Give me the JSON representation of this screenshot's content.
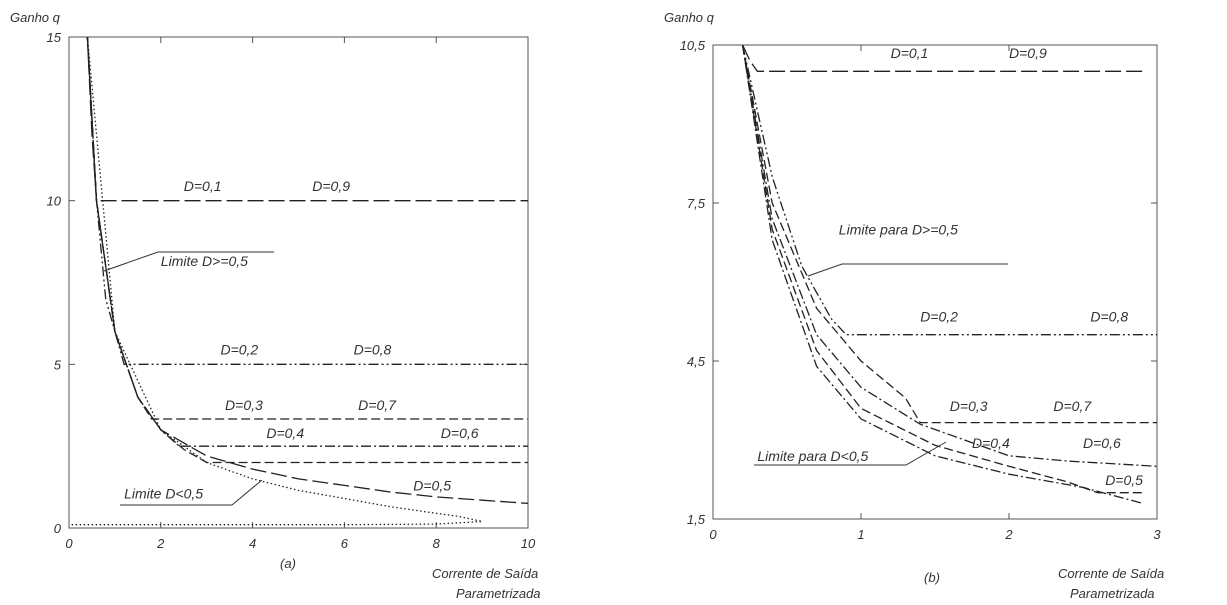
{
  "chart_data": [
    {
      "type": "line",
      "panel_label": "(a)",
      "ylabel": "Ganho q",
      "xlabel_line1": "Corrente de Saída",
      "xlabel_line2": "Parametrizada",
      "xlim": [
        0,
        10
      ],
      "ylim": [
        0,
        15
      ],
      "xticks": [
        "0",
        "2",
        "4",
        "6",
        "8",
        "10"
      ],
      "yticks": [
        "0",
        "5",
        "10",
        "15"
      ],
      "series": [
        {
          "name": "D=0,1 / D=0,9",
          "style": "long-dash",
          "x": [
            0.4,
            0.5,
            0.6,
            1,
            3,
            6,
            10
          ],
          "y": [
            15,
            12,
            10,
            10,
            10,
            10,
            10
          ]
        },
        {
          "name": "D=0,2 / D=0,8",
          "style": "dash-dot-dot",
          "x": [
            0.4,
            0.6,
            0.8,
            1.2,
            3,
            6,
            10
          ],
          "y": [
            15,
            10,
            7,
            5,
            5,
            5,
            5
          ]
        },
        {
          "name": "D=0,3 / D=0,7",
          "style": "dash",
          "x": [
            0.4,
            0.6,
            1,
            1.5,
            1.8,
            3,
            6,
            10
          ],
          "y": [
            15,
            10,
            6,
            4,
            3.33,
            3.33,
            3.33,
            3.33
          ]
        },
        {
          "name": "D=0,4 / D=0,6",
          "style": "dash-dot",
          "x": [
            0.4,
            0.6,
            1,
            1.5,
            2,
            2.4,
            3,
            6,
            10
          ],
          "y": [
            15,
            10,
            6,
            4,
            3,
            2.5,
            2.5,
            2.5,
            2.5
          ]
        },
        {
          "name": "D=0,5",
          "style": "dash",
          "x": [
            0.4,
            0.6,
            1,
            1.5,
            2,
            2.5,
            3,
            6,
            10
          ],
          "y": [
            15,
            10,
            6,
            4,
            3,
            2.4,
            2,
            2,
            2
          ]
        },
        {
          "name": "Limite D<0,5",
          "style": "long-dash",
          "x": [
            0.4,
            0.6,
            1,
            1.5,
            2,
            3,
            4,
            5,
            6,
            7,
            8,
            9,
            10
          ],
          "y": [
            15,
            10,
            6,
            4,
            3,
            2.2,
            1.8,
            1.5,
            1.3,
            1.1,
            0.95,
            0.85,
            0.75
          ]
        },
        {
          "name": "Limite D<0,5",
          "style": "dot",
          "x": [
            0.4,
            1,
            2,
            3,
            4,
            5,
            6,
            7,
            8,
            8.5,
            9,
            8,
            6,
            4,
            2,
            0
          ],
          "y": [
            15,
            6,
            3,
            2,
            1.5,
            1.15,
            0.9,
            0.65,
            0.45,
            0.35,
            0.2,
            0.12,
            0.1,
            0.1,
            0.1,
            0.1
          ]
        }
      ],
      "annotations": [
        {
          "text": "D=0,1",
          "x": 2.5,
          "y": 10.3
        },
        {
          "text": "D=0,9",
          "x": 5.3,
          "y": 10.3
        },
        {
          "text": "Limite D>=0,5",
          "x": 2.0,
          "y": 8.0
        },
        {
          "text": "D=0,2",
          "x": 3.3,
          "y": 5.3
        },
        {
          "text": "D=0,8",
          "x": 6.2,
          "y": 5.3
        },
        {
          "text": "D=0,3",
          "x": 3.4,
          "y": 3.6
        },
        {
          "text": "D=0,7",
          "x": 6.3,
          "y": 3.6
        },
        {
          "text": "D=0,4",
          "x": 4.3,
          "y": 2.75
        },
        {
          "text": "D=0,6",
          "x": 8.1,
          "y": 2.75
        },
        {
          "text": "D=0,5",
          "x": 7.5,
          "y": 1.15
        },
        {
          "text": "Limite D<0,5",
          "x": 1.2,
          "y": 0.9
        }
      ]
    },
    {
      "type": "line",
      "panel_label": "(b)",
      "ylabel": "Ganho q",
      "xlabel_line1": "Corrente de Saída",
      "xlabel_line2": "Parametrizada",
      "xlim": [
        0,
        3
      ],
      "ylim": [
        1.5,
        10.5
      ],
      "xticks": [
        "0",
        "1",
        "2",
        "3"
      ],
      "yticks": [
        "1,5",
        "4,5",
        "7,5",
        "10,5"
      ],
      "series": [
        {
          "name": "D=0,1 / D=0,9",
          "style": "long-dash",
          "x": [
            0.2,
            0.25,
            0.3,
            0.5,
            1,
            2,
            2.9
          ],
          "y": [
            10.5,
            10.2,
            10,
            10,
            10,
            10,
            10
          ]
        },
        {
          "name": "D=0,2 / D=0,8",
          "style": "dash-dot-dot",
          "x": [
            0.2,
            0.4,
            0.6,
            0.8,
            0.9,
            1,
            2,
            3
          ],
          "y": [
            10.5,
            8,
            6.3,
            5.3,
            5,
            5,
            5,
            5
          ]
        },
        {
          "name": "D=0,3 / D=0,7",
          "style": "dash",
          "x": [
            0.2,
            0.4,
            0.7,
            1,
            1.3,
            1.4,
            1.7,
            2,
            3
          ],
          "y": [
            10.5,
            7.5,
            5.5,
            4.5,
            3.8,
            3.33,
            3.33,
            3.33,
            3.33
          ]
        },
        {
          "name": "D=0,4 / D=0,6",
          "style": "dash-dot",
          "x": [
            0.2,
            0.4,
            0.7,
            1,
            1.4,
            1.8,
            2,
            2.4,
            3
          ],
          "y": [
            10.5,
            7.2,
            5,
            4,
            3.3,
            2.9,
            2.7,
            2.6,
            2.5
          ]
        },
        {
          "name": "D=0,5",
          "style": "dash",
          "x": [
            0.2,
            0.4,
            0.7,
            1,
            1.5,
            2,
            2.4,
            2.6,
            2.9
          ],
          "y": [
            10.5,
            7,
            4.7,
            3.6,
            2.9,
            2.5,
            2.2,
            2.0,
            2.0
          ]
        },
        {
          "name": "Limite D<0,5",
          "style": "dash-dot",
          "x": [
            0.2,
            0.4,
            0.7,
            1,
            1.5,
            2,
            2.5,
            2.9
          ],
          "y": [
            10.5,
            6.8,
            4.4,
            3.4,
            2.7,
            2.35,
            2.1,
            1.8
          ]
        }
      ],
      "annotations": [
        {
          "text": "D=0,1",
          "x": 1.2,
          "y": 10.25
        },
        {
          "text": "D=0,9",
          "x": 2.0,
          "y": 10.25
        },
        {
          "text": "Limite para D>=0,5",
          "x": 0.85,
          "y": 6.9
        },
        {
          "text": "D=0,2",
          "x": 1.4,
          "y": 5.25
        },
        {
          "text": "D=0,8",
          "x": 2.55,
          "y": 5.25
        },
        {
          "text": "D=0,3",
          "x": 1.6,
          "y": 3.55
        },
        {
          "text": "D=0,7",
          "x": 2.3,
          "y": 3.55
        },
        {
          "text": "D=0,4",
          "x": 1.75,
          "y": 2.85
        },
        {
          "text": "D=0,6",
          "x": 2.5,
          "y": 2.85
        },
        {
          "text": "Limite para D<0,5",
          "x": 0.3,
          "y": 2.6
        },
        {
          "text": "D=0,5",
          "x": 2.65,
          "y": 2.15
        }
      ]
    }
  ]
}
